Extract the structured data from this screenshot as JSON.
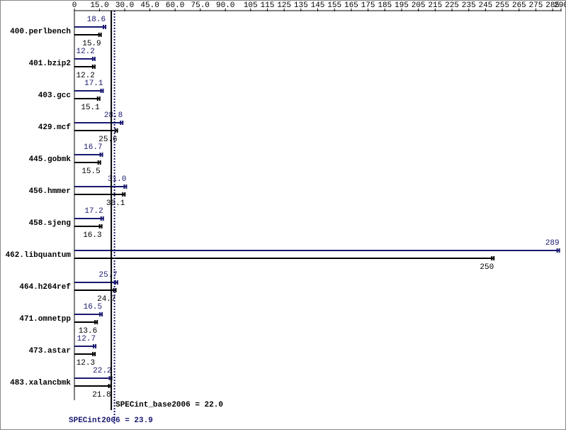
{
  "chart_data": {
    "type": "bar",
    "categories": [
      "400.perlbench",
      "401.bzip2",
      "403.gcc",
      "429.mcf",
      "445.gobmk",
      "456.hmmer",
      "458.sjeng",
      "462.libquantum",
      "464.h264ref",
      "471.omnetpp",
      "473.astar",
      "483.xalancbmk"
    ],
    "series": [
      {
        "color": "#191970",
        "values": [
          18.6,
          12.2,
          17.1,
          28.8,
          16.7,
          31.0,
          17.2,
          289,
          25.7,
          16.5,
          12.7,
          22.2
        ],
        "value_labels": [
          "18.6",
          "12.2",
          "17.1",
          "28.8",
          "16.7",
          "31.0",
          "17.2",
          "289",
          "25.7",
          "16.5",
          "12.7",
          "22.2"
        ]
      },
      {
        "color": "#000000",
        "values": [
          15.9,
          12.2,
          15.1,
          25.6,
          15.5,
          30.1,
          16.3,
          250,
          24.7,
          13.6,
          12.3,
          21.8
        ],
        "value_labels": [
          "15.9",
          "12.2",
          "15.1",
          "25.6",
          "15.5",
          "30.1",
          "16.3",
          "250",
          "24.7",
          "13.6",
          "12.3",
          "21.8"
        ]
      }
    ],
    "xlim": [
      0,
      290
    ],
    "xticks": [
      0,
      {
        "value": 15,
        "label": "15.0"
      },
      {
        "value": 30,
        "label": "30.0"
      },
      {
        "value": 45,
        "label": "45.0"
      },
      {
        "value": 60,
        "label": "60.0"
      },
      {
        "value": 75,
        "label": "75.0"
      },
      {
        "value": 90,
        "label": "90.0"
      },
      105,
      115,
      125,
      135,
      145,
      155,
      165,
      175,
      185,
      195,
      205,
      215,
      225,
      235,
      245,
      255,
      265,
      275,
      285,
      290
    ],
    "reference_lines": [
      {
        "value": 22.0,
        "label": "SPECint_base2006 = 22.0",
        "color": "#000000",
        "dashed": false
      },
      {
        "value": 23.9,
        "label": "SPECint2006 = 23.9",
        "color": "#191970",
        "dashed": true
      }
    ]
  }
}
